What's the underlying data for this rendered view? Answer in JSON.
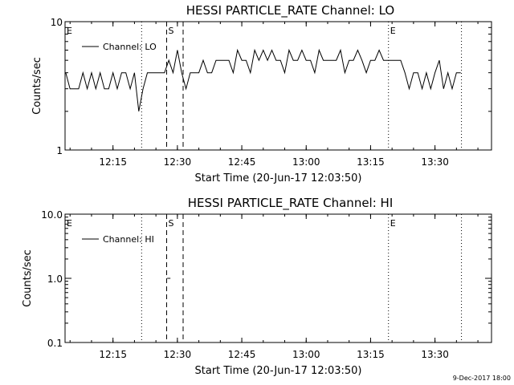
{
  "chart_data": [
    {
      "type": "line",
      "title": "HESSI PARTICLE_RATE Channel: LO",
      "xlabel": "Start Time (20-Jun-17 12:03:50)",
      "ylabel": "Counts/sec",
      "yscale": "log",
      "ylim": [
        1,
        10
      ],
      "xlim": [
        "12:03:50",
        "13:43:10"
      ],
      "x_ticks": [
        "12:15",
        "12:30",
        "12:45",
        "13:00",
        "13:15",
        "13:30"
      ],
      "y_ticks": [
        "1",
        "10"
      ],
      "legend": {
        "placement": "top-left",
        "entries": [
          "Channel: LO"
        ]
      },
      "markers": [
        {
          "label": "E",
          "time": "12:03:50",
          "style": "dotted"
        },
        {
          "label": "",
          "time": "12:21:40",
          "style": "dotted"
        },
        {
          "label": "S",
          "time": "12:27:30",
          "style": "dashed"
        },
        {
          "label": "",
          "time": "12:31:20",
          "style": "dashed"
        },
        {
          "label": "E",
          "time": "13:19:10",
          "style": "dotted"
        },
        {
          "label": "",
          "time": "13:36:10",
          "style": "dotted"
        }
      ],
      "series": [
        {
          "x": [
            "12:04",
            "12:05",
            "12:06",
            "12:07",
            "12:08",
            "12:09",
            "12:10",
            "12:11",
            "12:12",
            "12:13",
            "12:14",
            "12:15",
            "12:16",
            "12:17",
            "12:18",
            "12:19",
            "12:20",
            "12:21",
            "12:22",
            "12:23",
            "12:24",
            "12:25",
            "12:26",
            "12:27",
            "12:28",
            "12:29",
            "12:30",
            "12:31",
            "12:32",
            "12:33",
            "12:34",
            "12:35",
            "12:36",
            "12:37",
            "12:38",
            "12:39",
            "12:40",
            "12:41",
            "12:42",
            "12:43",
            "12:44",
            "12:45",
            "12:46",
            "12:47",
            "12:48",
            "12:49",
            "12:50",
            "12:51",
            "12:52",
            "12:53",
            "12:54",
            "12:55",
            "12:56",
            "12:57",
            "12:58",
            "12:59",
            "13:00",
            "13:01",
            "13:02",
            "13:03",
            "13:04",
            "13:05",
            "13:06",
            "13:07",
            "13:08",
            "13:09",
            "13:10",
            "13:11",
            "13:12",
            "13:13",
            "13:14",
            "13:15",
            "13:16",
            "13:17",
            "13:18",
            "13:19",
            "13:20",
            "13:21",
            "13:22",
            "13:23",
            "13:24",
            "13:25",
            "13:26",
            "13:27",
            "13:28",
            "13:29",
            "13:30",
            "13:31",
            "13:32",
            "13:33",
            "13:34",
            "13:35",
            "13:36"
          ],
          "y": [
            4,
            3,
            3,
            3,
            4,
            3,
            4,
            3,
            4,
            3,
            3,
            4,
            3,
            4,
            4,
            3,
            4,
            2,
            3,
            4,
            4,
            4,
            4,
            4,
            5,
            4,
            6,
            4,
            3,
            4,
            4,
            4,
            5,
            4,
            4,
            5,
            5,
            5,
            5,
            4,
            6,
            5,
            5,
            4,
            6,
            5,
            6,
            5,
            6,
            5,
            5,
            4,
            6,
            5,
            5,
            6,
            5,
            5,
            4,
            6,
            5,
            5,
            5,
            5,
            6,
            4,
            5,
            5,
            6,
            5,
            4,
            5,
            5,
            6,
            5,
            5,
            5,
            5,
            5,
            4,
            3,
            4,
            4,
            3,
            4,
            3,
            4,
            5,
            3,
            4,
            3,
            4,
            4
          ]
        }
      ]
    },
    {
      "type": "line",
      "title": "HESSI PARTICLE_RATE Channel: HI",
      "xlabel": "Start Time (20-Jun-17 12:03:50)",
      "ylabel": "Counts/sec",
      "yscale": "log",
      "ylim": [
        0.1,
        10.0
      ],
      "xlim": [
        "12:03:50",
        "13:43:10"
      ],
      "x_ticks": [
        "12:15",
        "12:30",
        "12:45",
        "13:00",
        "13:15",
        "13:30"
      ],
      "y_ticks": [
        "0.1",
        "1.0",
        "10.0"
      ],
      "legend": {
        "placement": "top-left",
        "entries": [
          "Channel: HI"
        ]
      },
      "markers": [
        {
          "label": "E",
          "time": "12:03:50",
          "style": "dotted"
        },
        {
          "label": "",
          "time": "12:21:40",
          "style": "dotted"
        },
        {
          "label": "S",
          "time": "12:27:30",
          "style": "dashed"
        },
        {
          "label": "",
          "time": "12:31:20",
          "style": "dashed"
        },
        {
          "label": "E",
          "time": "13:19:10",
          "style": "dotted"
        },
        {
          "label": "",
          "time": "13:36:10",
          "style": "dotted"
        }
      ],
      "series": [
        {
          "x": [
            "12:28"
          ],
          "y": [
            1.0
          ]
        }
      ]
    }
  ],
  "footer": {
    "timestamp": "9-Dec-2017 18:00"
  }
}
